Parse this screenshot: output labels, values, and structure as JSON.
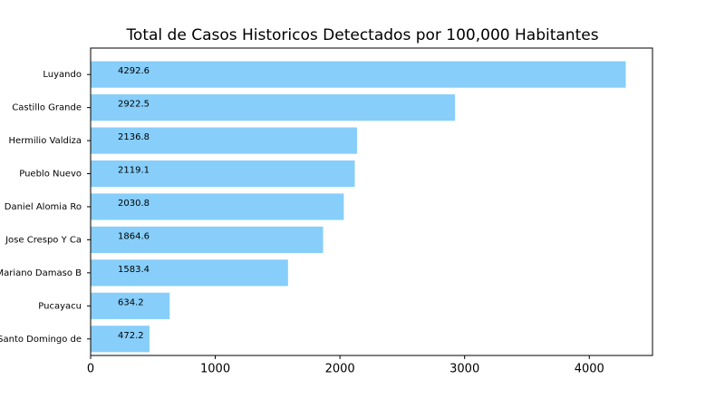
{
  "chart_data": {
    "type": "barh",
    "title": "Total de Casos Historicos Detectados por 100,000 Habitantes",
    "categories": [
      "Luyando",
      "Castillo Grande",
      "Hermilio Valdiza",
      "Pueblo Nuevo",
      "Daniel Alomia Ro",
      "Jose Crespo Y Ca",
      "Mariano Damaso B",
      "Pucayacu",
      "Santo Domingo de"
    ],
    "values": [
      4292.6,
      2922.5,
      2136.8,
      2119.1,
      2030.8,
      1864.6,
      1583.4,
      634.2,
      472.2
    ],
    "color": "#87cefa",
    "xlim": [
      0,
      4507
    ],
    "xticks": [
      0,
      1000,
      2000,
      3000,
      4000
    ]
  }
}
